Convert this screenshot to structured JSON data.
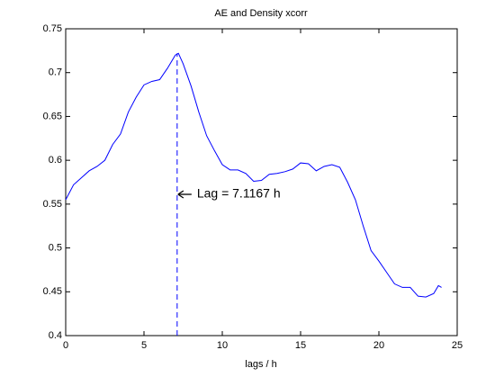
{
  "chart_data": {
    "type": "line",
    "title": "AE and Density xcorr",
    "x_label": "lags / h",
    "x": [
      0,
      0.5,
      1,
      1.5,
      2,
      2.5,
      3,
      3.5,
      4,
      4.5,
      5,
      5.5,
      6,
      6.5,
      7,
      7.2,
      7.5,
      8,
      8.5,
      9,
      9.5,
      10,
      10.5,
      11,
      11.5,
      12,
      12.5,
      13,
      13.5,
      14,
      14.5,
      15,
      15.5,
      16,
      16.5,
      17,
      17.5,
      18,
      18.5,
      19,
      19.5,
      20,
      20.5,
      21,
      21.5,
      22,
      22.5,
      23,
      23.5,
      23.8,
      24
    ],
    "series": [
      {
        "color": "#0000ff",
        "values": [
          0.555,
          0.572,
          0.58,
          0.588,
          0.593,
          0.6,
          0.618,
          0.63,
          0.655,
          0.672,
          0.686,
          0.69,
          0.692,
          0.705,
          0.72,
          0.722,
          0.71,
          0.685,
          0.655,
          0.628,
          0.611,
          0.595,
          0.589,
          0.589,
          0.585,
          0.576,
          0.577,
          0.584,
          0.585,
          0.587,
          0.59,
          0.597,
          0.596,
          0.588,
          0.593,
          0.595,
          0.592,
          0.575,
          0.555,
          0.525,
          0.497,
          0.485,
          0.472,
          0.459,
          0.455,
          0.455,
          0.445,
          0.444,
          0.448,
          0.457,
          0.455
        ]
      }
    ],
    "lag_line": {
      "x": 7.1167,
      "y": [
        0.4,
        0.722
      ],
      "color": "#0000ff"
    },
    "annotation": "Lag = 7.1167 h",
    "xlim": [
      0,
      25
    ],
    "xticks": [
      0,
      5,
      10,
      15,
      20,
      25
    ],
    "ylim": [
      0.4,
      0.75
    ],
    "yticks": [
      0.4,
      0.45,
      0.5,
      0.55,
      0.6,
      0.65,
      0.7,
      0.75
    ],
    "grid": false
  }
}
